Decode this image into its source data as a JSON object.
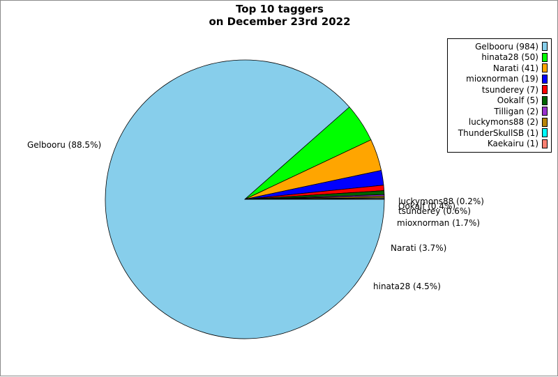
{
  "chart_data": {
    "type": "pie",
    "title": "Top 10 taggers",
    "subtitle": "on December 23rd 2022",
    "slices": [
      {
        "name": "Gelbooru",
        "value": 984,
        "percent_label": "Gelbooru (88.5%)",
        "legend_label": "Gelbooru (984)",
        "color": "#87CEEB"
      },
      {
        "name": "hinata28",
        "value": 50,
        "percent_label": "hinata28 (4.5%)",
        "legend_label": "hinata28 (50)",
        "color": "#00FF00"
      },
      {
        "name": "Narati",
        "value": 41,
        "percent_label": "Narati (3.7%)",
        "legend_label": "Narati (41)",
        "color": "#FFA500"
      },
      {
        "name": "mioxnorman",
        "value": 19,
        "percent_label": "mioxnorman (1.7%)",
        "legend_label": "mioxnorman (19)",
        "color": "#0000FF"
      },
      {
        "name": "tsunderey",
        "value": 7,
        "percent_label": "tsunderey (0.6%)",
        "legend_label": "tsunderey (7)",
        "color": "#FF0000"
      },
      {
        "name": "Ookalf",
        "value": 5,
        "percent_label": "Ookalf (0.4%)",
        "legend_label": "Ookalf (5)",
        "color": "#006400"
      },
      {
        "name": "Tilligan",
        "value": 2,
        "percent_label": "",
        "legend_label": "Tilligan (2)",
        "color": "#9932CC"
      },
      {
        "name": "luckymons88",
        "value": 2,
        "percent_label": "luckymons88 (0.2%)",
        "legend_label": "luckymons88 (2)",
        "color": "#B8860B"
      },
      {
        "name": "ThunderSkullSB",
        "value": 1,
        "percent_label": "",
        "legend_label": "ThunderSkullSB (1)",
        "color": "#00FFFF"
      },
      {
        "name": "Kaekairu",
        "value": 1,
        "percent_label": "",
        "legend_label": "Kaekairu (1)",
        "color": "#FA8072"
      }
    ],
    "legend_position": "top-right"
  }
}
